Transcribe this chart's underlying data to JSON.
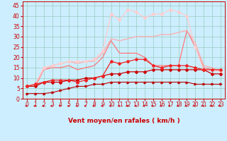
{
  "background_color": "#cceeff",
  "grid_color": "#99ccbb",
  "xlabel": "Vent moyen/en rafales ( km/h )",
  "xlabel_color": "#cc0000",
  "xlabel_fontsize": 6.5,
  "tick_color": "#cc0000",
  "tick_fontsize": 5.5,
  "xlim": [
    -0.5,
    23.5
  ],
  "ylim": [
    0,
    47
  ],
  "yticks": [
    0,
    5,
    10,
    15,
    20,
    25,
    30,
    35,
    40,
    45
  ],
  "xticks": [
    0,
    1,
    2,
    3,
    4,
    5,
    6,
    7,
    8,
    9,
    10,
    11,
    12,
    13,
    14,
    15,
    16,
    17,
    18,
    19,
    20,
    21,
    22,
    23
  ],
  "series": [
    {
      "x": [
        0,
        1,
        2,
        3,
        4,
        5,
        6,
        7,
        8,
        9,
        10,
        11,
        12,
        13,
        14,
        15,
        16,
        17,
        18,
        19,
        20,
        21,
        22,
        23
      ],
      "y": [
        2.5,
        2.5,
        2.5,
        3,
        4,
        5,
        6,
        6,
        7,
        7,
        8,
        8,
        8,
        8,
        8,
        8,
        8,
        8,
        8,
        8,
        7,
        7,
        7,
        7
      ],
      "color": "#bb0000",
      "linewidth": 0.8,
      "marker": ">",
      "markersize": 2.0,
      "linestyle": "-",
      "zorder": 4
    },
    {
      "x": [
        0,
        1,
        2,
        3,
        4,
        5,
        6,
        7,
        8,
        9,
        10,
        11,
        12,
        13,
        14,
        15,
        16,
        17,
        18,
        19,
        20,
        21,
        22,
        23
      ],
      "y": [
        6,
        6,
        8,
        8,
        8,
        9,
        9,
        10,
        10,
        11,
        12,
        12,
        13,
        13,
        13,
        14,
        14,
        14,
        14,
        14,
        14,
        14,
        12,
        12
      ],
      "color": "#cc0000",
      "linewidth": 0.9,
      "marker": "D",
      "markersize": 2.0,
      "linestyle": "-",
      "zorder": 4
    },
    {
      "x": [
        0,
        1,
        2,
        3,
        4,
        5,
        6,
        7,
        8,
        9,
        10,
        11,
        12,
        13,
        14,
        15,
        16,
        17,
        18,
        19,
        20,
        21,
        22,
        23
      ],
      "y": [
        6,
        7,
        8,
        9,
        9,
        9,
        8,
        9,
        10,
        11,
        18,
        17,
        18,
        19,
        19,
        16,
        15,
        16,
        16,
        16,
        15,
        14,
        14,
        14
      ],
      "color": "#ee2222",
      "linewidth": 0.9,
      "marker": "D",
      "markersize": 2.0,
      "linestyle": "-",
      "zorder": 4
    },
    {
      "x": [
        0,
        1,
        2,
        3,
        4,
        5,
        6,
        7,
        8,
        9,
        10,
        11,
        12,
        13,
        14,
        15,
        16,
        17,
        18,
        19,
        20,
        21,
        22,
        23
      ],
      "y": [
        6,
        6,
        14,
        15,
        15,
        16,
        14,
        15,
        16,
        20,
        28,
        22,
        22,
        22,
        20,
        16,
        16,
        16,
        16,
        33,
        25,
        15,
        14,
        14
      ],
      "color": "#ff7777",
      "linewidth": 0.9,
      "marker": null,
      "markersize": 0,
      "linestyle": "-",
      "zorder": 3
    },
    {
      "x": [
        0,
        1,
        2,
        3,
        4,
        5,
        6,
        7,
        8,
        9,
        10,
        11,
        12,
        13,
        14,
        15,
        16,
        17,
        18,
        19,
        20,
        21,
        22,
        23
      ],
      "y": [
        6,
        7,
        14,
        16,
        17,
        18,
        17,
        18,
        18,
        22,
        29,
        28,
        29,
        30,
        30,
        30,
        31,
        31,
        32,
        33,
        27,
        16,
        15,
        13
      ],
      "color": "#ffaaaa",
      "linewidth": 0.9,
      "marker": null,
      "markersize": 0,
      "linestyle": "-",
      "zorder": 3
    },
    {
      "x": [
        0,
        1,
        2,
        3,
        4,
        5,
        6,
        7,
        8,
        9,
        10,
        11,
        12,
        13,
        14,
        15,
        16,
        17,
        18,
        19,
        20,
        21,
        22,
        23
      ],
      "y": [
        6,
        7,
        15,
        16,
        17,
        18,
        18,
        18,
        19,
        23,
        41,
        38,
        43,
        42,
        39,
        41,
        41,
        43,
        42,
        40,
        25,
        14,
        14,
        13
      ],
      "color": "#ffcccc",
      "linewidth": 0.9,
      "marker": "D",
      "markersize": 2.0,
      "linestyle": "-",
      "zorder": 3
    }
  ],
  "arrow_color": "#cc0000"
}
